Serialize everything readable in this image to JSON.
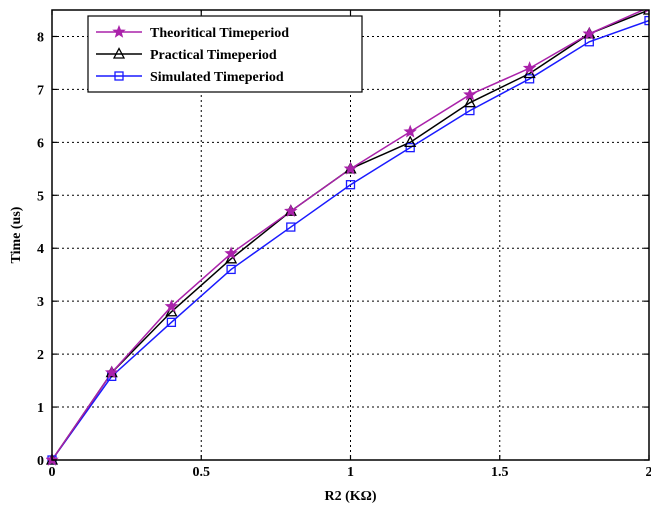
{
  "chart_data": {
    "type": "line",
    "xlabel": "R2 (KΩ)",
    "ylabel": "Time (us)",
    "xlim": [
      0,
      2
    ],
    "ylim": [
      0,
      8.5
    ],
    "xticks": [
      0,
      0.5,
      1,
      1.5,
      2
    ],
    "xtick_labels": [
      "0",
      "0.5",
      "1",
      "1.5",
      "2"
    ],
    "yticks": [
      0,
      1,
      2,
      3,
      4,
      5,
      6,
      7,
      8
    ],
    "ytick_labels": [
      "0",
      "1",
      "2",
      "3",
      "4",
      "5",
      "6",
      "7",
      "8"
    ],
    "grid": true,
    "legend_position": "top-left",
    "x": [
      0,
      0.2,
      0.4,
      0.6,
      0.8,
      1.0,
      1.2,
      1.4,
      1.6,
      1.8,
      2.0
    ],
    "series": [
      {
        "name": "Theoritical Timeperiod",
        "marker": "star",
        "color": "#aa22aa",
        "values": [
          0,
          1.65,
          2.9,
          3.9,
          4.7,
          5.5,
          6.2,
          6.9,
          7.4,
          8.05,
          8.55
        ]
      },
      {
        "name": "Practical Timeperiod",
        "marker": "triangle",
        "color": "#000000",
        "values": [
          0,
          1.65,
          2.8,
          3.8,
          4.7,
          5.5,
          6.0,
          6.75,
          7.3,
          8.05,
          8.5
        ]
      },
      {
        "name": "Simulated Timeperiod",
        "marker": "square",
        "color": "#1a1aff",
        "values": [
          0,
          1.58,
          2.6,
          3.6,
          4.4,
          5.2,
          5.9,
          6.6,
          7.2,
          7.9,
          8.3
        ]
      }
    ]
  }
}
